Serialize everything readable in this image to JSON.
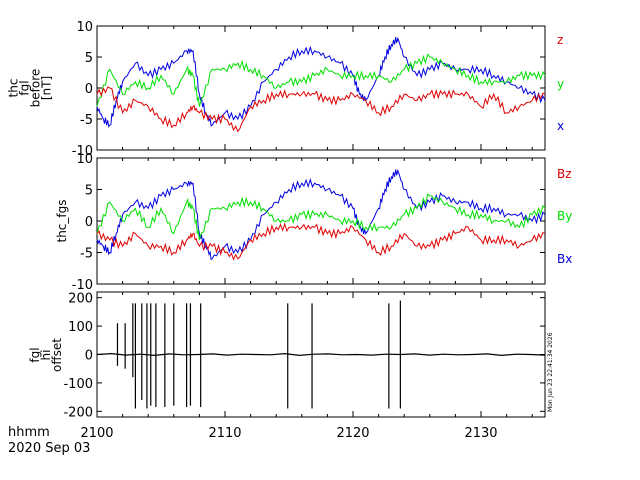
{
  "chart_data": [
    {
      "type": "line",
      "ylabel_lines": [
        "thc",
        "fgl",
        "before",
        "[nT]"
      ],
      "ylim": [
        -10,
        10
      ],
      "yticks": [
        10,
        5,
        0,
        -5,
        -10
      ],
      "xlim": [
        2100,
        2135
      ],
      "legend": [
        {
          "label": "z",
          "color": "#e00000"
        },
        {
          "label": "y",
          "color": "#00e000"
        },
        {
          "label": "x",
          "color": "#0000e0"
        }
      ],
      "series": [
        {
          "name": "x",
          "color": "#0000e0",
          "x": [
            2100,
            2100.5,
            2101,
            2101.5,
            2102,
            2103,
            2104,
            2105,
            2106,
            2107,
            2107.5,
            2108,
            2108.5,
            2109,
            2110,
            2111,
            2112,
            2113,
            2114,
            2115,
            2116,
            2117,
            2118,
            2119,
            2120,
            2120.5,
            2121,
            2122,
            2122.5,
            2123,
            2123.5,
            2124,
            2125,
            2126,
            2127,
            2128,
            2129,
            2130,
            2131,
            2132,
            2133,
            2134,
            2135
          ],
          "y": [
            -3,
            -5,
            -6,
            -2,
            1,
            4,
            2,
            3,
            4,
            6,
            6,
            -1,
            -4,
            -6,
            -4,
            -5,
            -3,
            1,
            3,
            5,
            6,
            6,
            5,
            4,
            2,
            -1,
            -2,
            2,
            5,
            7,
            8,
            5,
            2,
            3,
            4,
            3,
            3,
            3,
            2,
            1,
            0,
            -1,
            -2
          ]
        },
        {
          "name": "y",
          "color": "#00e000",
          "x": [
            2100,
            2101,
            2102,
            2103,
            2104,
            2105,
            2106,
            2107,
            2107.5,
            2108,
            2109,
            2110,
            2111,
            2112,
            2113,
            2114,
            2115,
            2116,
            2117,
            2118,
            2119,
            2120,
            2121,
            2122,
            2123,
            2124,
            2125,
            2126,
            2127,
            2128,
            2129,
            2130,
            2131,
            2132,
            2133,
            2134,
            2135
          ],
          "y": [
            -3,
            3,
            -1,
            1,
            0,
            2,
            -1,
            3,
            2,
            -3,
            3,
            3,
            4,
            3,
            2,
            0,
            1,
            1,
            2,
            3,
            2,
            2,
            2,
            2,
            1,
            3,
            4,
            5,
            4,
            3,
            2,
            1,
            1,
            1,
            2,
            2,
            2
          ]
        },
        {
          "name": "z",
          "color": "#e00000",
          "x": [
            2100,
            2101,
            2102,
            2103,
            2104,
            2105,
            2106,
            2107,
            2107.5,
            2108,
            2109,
            2110,
            2111,
            2112,
            2113,
            2114,
            2115,
            2116,
            2117,
            2118,
            2119,
            2120,
            2121,
            2122,
            2123,
            2124,
            2125,
            2126,
            2127,
            2128,
            2129,
            2130,
            2131,
            2132,
            2133,
            2134,
            2135
          ],
          "y": [
            -1,
            0,
            -4,
            -2,
            -3,
            -5,
            -6,
            -4,
            -3,
            -4,
            -5,
            -5,
            -7,
            -3,
            -2,
            -1,
            -1,
            -1,
            -1,
            -2,
            -2,
            -1,
            -2,
            -4,
            -3,
            -1,
            -2,
            -1,
            -1,
            -1,
            -1,
            -3,
            -1,
            -4,
            -3,
            -2,
            -1
          ]
        }
      ]
    },
    {
      "type": "line",
      "ylabel_lines": [
        "thc_fgs"
      ],
      "ylim": [
        -10,
        10
      ],
      "yticks": [
        10,
        5,
        0,
        -5,
        -10
      ],
      "xlim": [
        2100,
        2135
      ],
      "legend": [
        {
          "label": "Bz",
          "color": "#e00000"
        },
        {
          "label": "By",
          "color": "#00e000"
        },
        {
          "label": "Bx",
          "color": "#0000e0"
        }
      ],
      "series": [
        {
          "name": "Bx",
          "color": "#0000e0",
          "x": [
            2100,
            2100.5,
            2101,
            2101.5,
            2102,
            2103,
            2104,
            2105,
            2106,
            2107,
            2107.5,
            2108,
            2108.5,
            2109,
            2110,
            2111,
            2112,
            2113,
            2114,
            2115,
            2116,
            2117,
            2118,
            2119,
            2120,
            2120.5,
            2121,
            2122,
            2122.5,
            2123,
            2123.5,
            2124,
            2125,
            2126,
            2127,
            2128,
            2129,
            2130,
            2131,
            2132,
            2133,
            2134,
            2135
          ],
          "y": [
            -3,
            -4,
            -5,
            -2,
            1,
            3,
            2,
            4,
            5,
            6,
            6,
            -2,
            -4,
            -6,
            -4,
            -5,
            -3,
            1,
            3,
            5,
            6,
            6,
            5,
            4,
            2,
            -1,
            -2,
            2,
            5,
            7,
            8,
            5,
            2,
            3,
            4,
            3,
            3,
            2,
            2,
            1,
            1,
            0,
            1
          ]
        },
        {
          "name": "By",
          "color": "#00e000",
          "x": [
            2100,
            2101,
            2102,
            2103,
            2104,
            2105,
            2106,
            2107,
            2107.5,
            2108,
            2109,
            2110,
            2111,
            2112,
            2113,
            2114,
            2115,
            2116,
            2117,
            2118,
            2119,
            2120,
            2121,
            2122,
            2123,
            2124,
            2125,
            2126,
            2127,
            2128,
            2129,
            2130,
            2131,
            2132,
            2133,
            2134,
            2135
          ],
          "y": [
            -2,
            3,
            0,
            2,
            -1,
            2,
            -2,
            3,
            2,
            -3,
            2,
            2,
            3,
            3,
            2,
            0,
            0,
            1,
            1,
            1,
            0,
            0,
            -1,
            -1,
            -1,
            1,
            2,
            4,
            3,
            2,
            1,
            1,
            0,
            0,
            -1,
            1,
            2
          ]
        },
        {
          "name": "Bz",
          "color": "#e00000",
          "x": [
            2100,
            2101,
            2102,
            2103,
            2104,
            2105,
            2106,
            2107,
            2107.5,
            2108,
            2109,
            2110,
            2111,
            2112,
            2113,
            2114,
            2115,
            2116,
            2117,
            2118,
            2119,
            2120,
            2121,
            2122,
            2123,
            2124,
            2125,
            2126,
            2127,
            2128,
            2129,
            2130,
            2131,
            2132,
            2133,
            2134,
            2135
          ],
          "y": [
            -2,
            -3,
            -4,
            -2,
            -4,
            -4,
            -5,
            -3,
            -2,
            -4,
            -4,
            -5,
            -6,
            -3,
            -2,
            -1,
            -1,
            -1,
            -1,
            -2,
            -2,
            -1,
            -3,
            -5,
            -4,
            -2,
            -4,
            -4,
            -3,
            -2,
            -1,
            -3,
            -3,
            -3,
            -4,
            -3,
            -2
          ]
        }
      ]
    },
    {
      "type": "line",
      "ylabel_lines": [
        "fgl",
        "hi",
        "offset"
      ],
      "ylim": [
        -220,
        220
      ],
      "yticks": [
        200,
        100,
        0,
        -100,
        -200
      ],
      "xlim": [
        2100,
        2135
      ],
      "xticks": [
        2100,
        2110,
        2120,
        2130
      ],
      "series": [
        {
          "name": "offset",
          "color": "#000000",
          "baseline": [
            0,
            3,
            -2,
            1,
            -3,
            2,
            -1,
            0,
            2,
            -2,
            1,
            0,
            -1,
            3,
            -3,
            1,
            2,
            -1,
            0,
            -2,
            1,
            0,
            2,
            -2,
            1,
            -1,
            0,
            2,
            -3,
            1,
            0,
            -2
          ],
          "spikes": [
            {
              "x": 2101.6,
              "ymin": -40,
              "ymax": 110
            },
            {
              "x": 2102.2,
              "ymin": -50,
              "ymax": 110
            },
            {
              "x": 2102.8,
              "ymin": -80,
              "ymax": 180
            },
            {
              "x": 2103.0,
              "ymin": -190,
              "ymax": 180
            },
            {
              "x": 2103.5,
              "ymin": -160,
              "ymax": 180
            },
            {
              "x": 2103.9,
              "ymin": -190,
              "ymax": 180
            },
            {
              "x": 2104.2,
              "ymin": -180,
              "ymax": 180
            },
            {
              "x": 2104.6,
              "ymin": -185,
              "ymax": 180
            },
            {
              "x": 2105.3,
              "ymin": -185,
              "ymax": 180
            },
            {
              "x": 2106.0,
              "ymin": -180,
              "ymax": 180
            },
            {
              "x": 2107.0,
              "ymin": -185,
              "ymax": 180
            },
            {
              "x": 2107.3,
              "ymin": -180,
              "ymax": 180
            },
            {
              "x": 2108.1,
              "ymin": -185,
              "ymax": 180
            },
            {
              "x": 2114.9,
              "ymin": -190,
              "ymax": 180
            },
            {
              "x": 2116.8,
              "ymin": -190,
              "ymax": 180
            },
            {
              "x": 2122.8,
              "ymin": -190,
              "ymax": 180
            },
            {
              "x": 2123.7,
              "ymin": -190,
              "ymax": 190
            }
          ]
        }
      ]
    }
  ],
  "footer": {
    "time_unit": "hhmm",
    "date": "2020 Sep 03",
    "stamp": "Mon Jun 23 22:41:34 2026"
  }
}
